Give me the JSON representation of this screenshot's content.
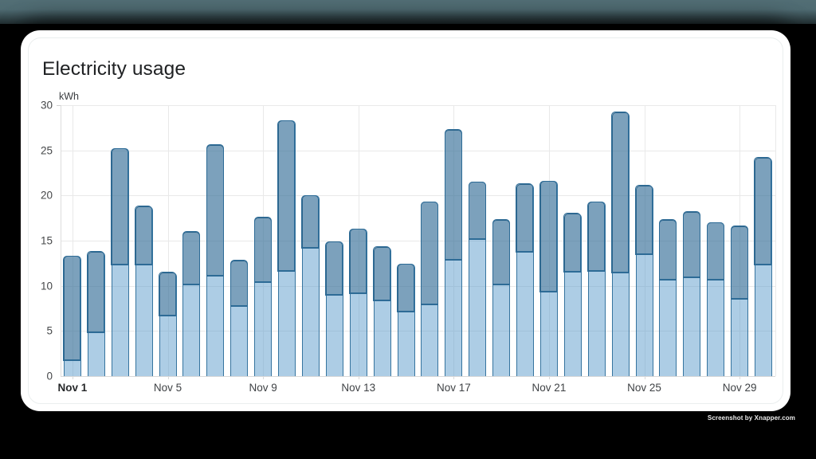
{
  "page": {
    "watermark": "Screenshot by Xnapper.com"
  },
  "card": {
    "title": "Electricity usage"
  },
  "colors": {
    "bar_border_light": "#36749f",
    "bar_border_dark": "#2d6b96",
    "bar_fill_light": "#adcee5",
    "bar_fill_dark": "#7ca1bc",
    "gridline": "#e9e9e9",
    "background_strip": "#4e6a71",
    "card_background": "#ffffff"
  },
  "chart_data": {
    "type": "bar",
    "stacked": true,
    "title": "Electricity usage",
    "xlabel": "",
    "ylabel": "kWh",
    "ylim": [
      0,
      30
    ],
    "yticks": [
      0,
      5,
      10,
      15,
      20,
      25,
      30
    ],
    "grid": true,
    "legend": "none",
    "label_every_n_days": 4,
    "labeled_ticks": [
      "Nov 1",
      "Nov 5",
      "Nov 9",
      "Nov 13",
      "Nov 17",
      "Nov 21",
      "Nov 25",
      "Nov 29"
    ],
    "categories": [
      "Nov 1",
      "Nov 2",
      "Nov 3",
      "Nov 4",
      "Nov 5",
      "Nov 6",
      "Nov 7",
      "Nov 8",
      "Nov 9",
      "Nov 10",
      "Nov 11",
      "Nov 12",
      "Nov 13",
      "Nov 14",
      "Nov 15",
      "Nov 16",
      "Nov 17",
      "Nov 18",
      "Nov 19",
      "Nov 20",
      "Nov 21",
      "Nov 22",
      "Nov 23",
      "Nov 24",
      "Nov 25",
      "Nov 26",
      "Nov 27",
      "Nov 28",
      "Nov 29",
      "Nov 30"
    ],
    "series": [
      {
        "name": "lower segment (light blue)",
        "values": [
          1.6,
          4.7,
          12.2,
          12.2,
          6.6,
          10.0,
          11.0,
          7.6,
          10.3,
          11.5,
          14.1,
          8.9,
          9.0,
          8.2,
          7.0,
          7.8,
          12.7,
          15.0,
          10.0,
          13.6,
          9.2,
          11.4,
          11.5,
          11.3,
          13.4,
          10.5,
          10.8,
          10.5,
          8.4,
          12.2
        ]
      },
      {
        "name": "upper segment (dark blue)",
        "values": [
          11.7,
          9.1,
          13.0,
          6.6,
          4.9,
          6.0,
          14.6,
          5.2,
          7.3,
          16.8,
          5.9,
          6.0,
          7.3,
          6.1,
          5.4,
          11.5,
          14.6,
          6.5,
          7.3,
          7.7,
          12.4,
          6.6,
          7.8,
          17.9,
          7.7,
          6.8,
          7.4,
          6.5,
          8.2,
          12.0
        ]
      }
    ],
    "totals": [
      13.3,
      13.8,
      25.2,
      18.8,
      11.5,
      16.0,
      25.6,
      12.8,
      17.6,
      28.3,
      20.0,
      14.9,
      16.3,
      14.3,
      12.4,
      19.3,
      27.3,
      21.5,
      17.3,
      21.3,
      21.6,
      18.0,
      19.3,
      29.2,
      21.1,
      17.3,
      18.2,
      17.0,
      16.6,
      24.2
    ]
  }
}
